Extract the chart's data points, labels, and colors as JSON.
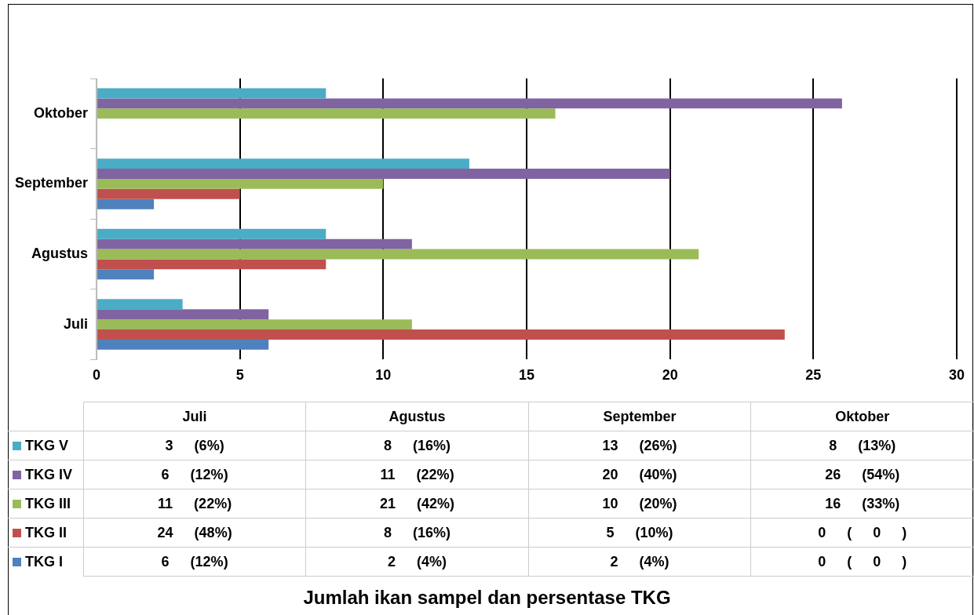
{
  "chart_data": {
    "type": "bar",
    "orientation": "horizontal",
    "title": "Jumlah ikan sampel dan persentase TKG",
    "categories": [
      "Oktober",
      "September",
      "Agustus",
      "Juli"
    ],
    "series": [
      {
        "name": "TKG V",
        "color": "#4bacc6",
        "values": [
          8,
          13,
          8,
          3
        ]
      },
      {
        "name": "TKG IV",
        "color": "#8064a2",
        "values": [
          26,
          20,
          11,
          6
        ]
      },
      {
        "name": "TKG III",
        "color": "#9bbb59",
        "values": [
          16,
          10,
          21,
          11
        ]
      },
      {
        "name": "TKG II",
        "color": "#c0504d",
        "values": [
          0,
          5,
          8,
          24
        ]
      },
      {
        "name": "TKG I",
        "color": "#4f81bd",
        "values": [
          0,
          2,
          2,
          6
        ]
      }
    ],
    "annotations": [
      "3 (6%)",
      "8 (16%)",
      "13 (26%)",
      "8 (13%)",
      "6 (12%)",
      "11 (22%)",
      "20 (40%)",
      "26 (54%)",
      "11 (22%)",
      "21 (42%)",
      "10 (20%)",
      "16 (33%)",
      "24 (48%)",
      "8 (16%)",
      "5 (10%)",
      "0 ( 0 )",
      "6 (12%)",
      "2 (4%)",
      "2 (4%)",
      "0 ( 0 )"
    ],
    "xlim": [
      0,
      30
    ],
    "xticks": [
      0,
      5,
      10,
      15,
      20,
      25,
      30
    ],
    "grid": "x",
    "legend": "bottom"
  }
}
